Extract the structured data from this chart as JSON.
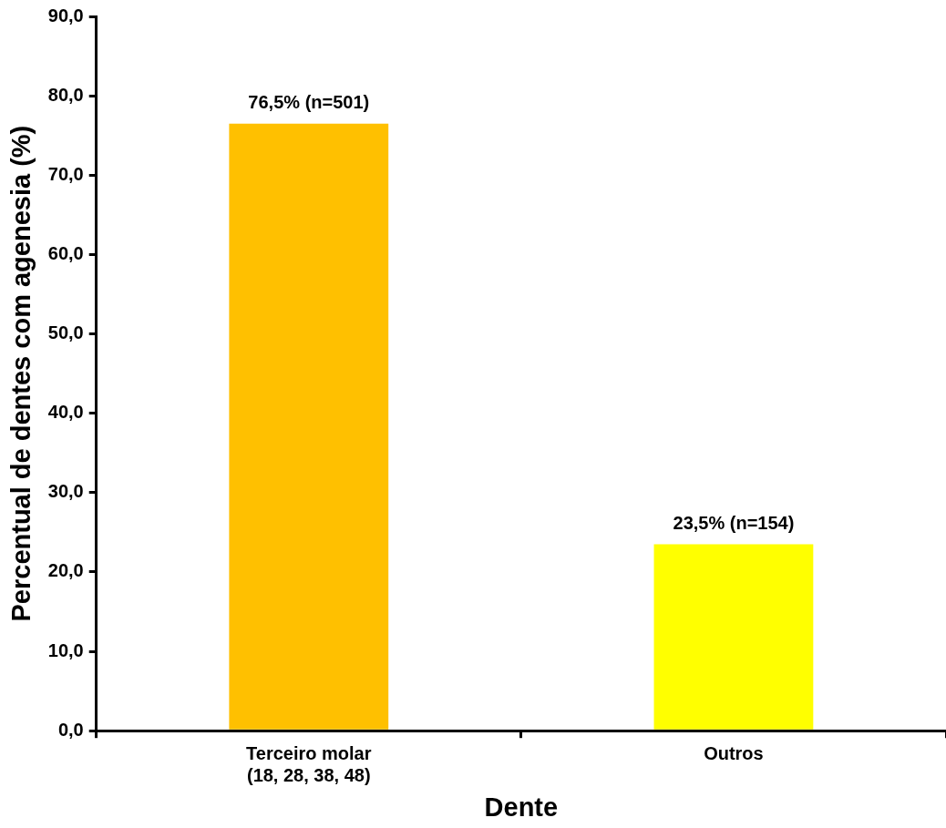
{
  "chart_data": {
    "type": "bar",
    "xlabel": "Dente",
    "ylabel": "Percentual de dentes com agenesia (%)",
    "categories": [
      "Terceiro molar\n(18, 28, 38, 48)",
      "Outros"
    ],
    "values": [
      76.5,
      23.5
    ],
    "colors": [
      "#ffc000",
      "#ffff00"
    ],
    "value_labels": [
      "76,5% (n=501)",
      "23,5% (n=154)"
    ],
    "ylim": [
      0,
      90
    ],
    "yticks": [
      {
        "value": 0,
        "label": "0,0"
      },
      {
        "value": 10,
        "label": "10,0"
      },
      {
        "value": 20,
        "label": "20,0"
      },
      {
        "value": 30,
        "label": "30,0"
      },
      {
        "value": 40,
        "label": "40,0"
      },
      {
        "value": 50,
        "label": "50,0"
      },
      {
        "value": 60,
        "label": "60,0"
      },
      {
        "value": 70,
        "label": "70,0"
      },
      {
        "value": 80,
        "label": "80,0"
      },
      {
        "value": 90,
        "label": "90,0"
      }
    ],
    "grid": false,
    "legend": false
  }
}
